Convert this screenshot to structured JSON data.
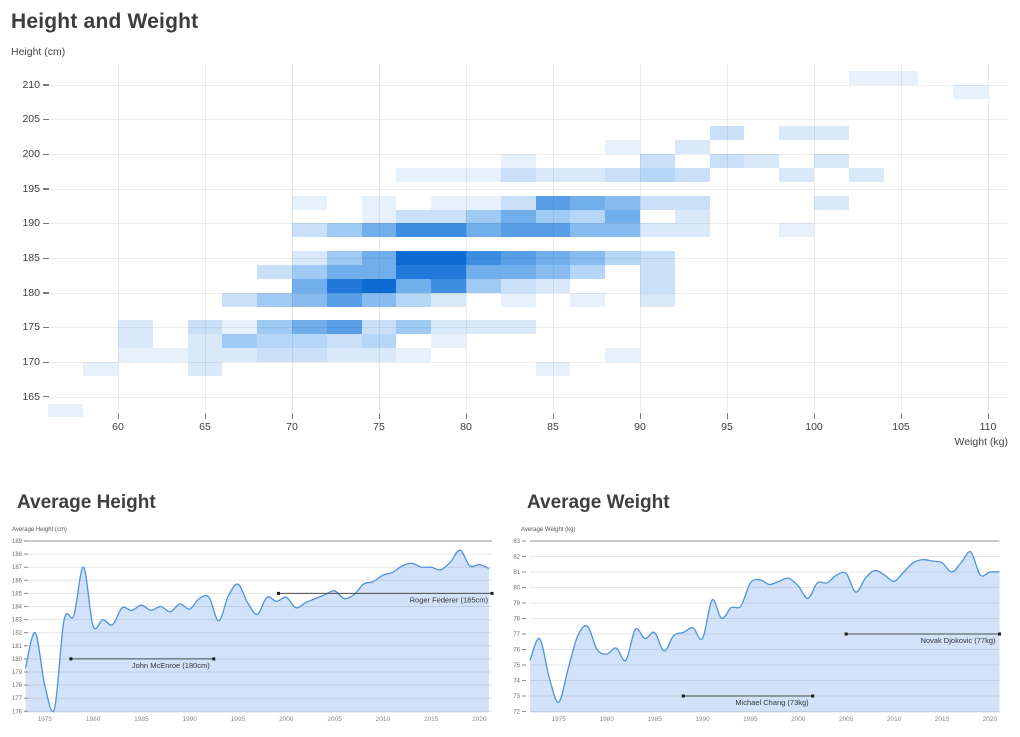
{
  "header": {
    "title": "Height and Weight"
  },
  "colors": {
    "accent_line": "#4e94dc",
    "area_fill": "#d2e2f8",
    "grid": "#ececec",
    "top_rule": "#a8a8a8",
    "annotation_line": "#4d4d4d",
    "annotation_dot": "#1a1a1a",
    "title_text": "#3c3c3c",
    "tick_text": "#3d3d3d",
    "small_tick_text": "#757575"
  },
  "chart_data": [
    {
      "type": "heatmap",
      "title": "Height and Weight",
      "xlabel": "Weight (kg)",
      "ylabel": "Height (cm)",
      "x_ticks": [
        60,
        65,
        70,
        75,
        80,
        85,
        90,
        95,
        100,
        105,
        110
      ],
      "y_ticks": [
        165,
        170,
        175,
        180,
        185,
        190,
        195,
        200,
        205,
        210
      ],
      "x_range": [
        56,
        110
      ],
      "y_range": [
        162,
        212
      ],
      "bin_size_kg": 2,
      "bin_size_cm": 2,
      "grid": "both",
      "intensity_scale": {
        "1": "#e7f1fc",
        "1.5": "#d9e9fa",
        "2": "#c9e0f8",
        "2.5": "#b5d6f6",
        "3": "#9fcaf3",
        "3.5": "#88bcf0",
        "4": "#70aeec",
        "4.5": "#579ee7",
        "5": "#3d8de2",
        "5.5": "#2379da",
        "6": "#0d6cd2"
      },
      "cells": [
        [
          56,
          162,
          1
        ],
        [
          58,
          168,
          1
        ],
        [
          64,
          168,
          1.5
        ],
        [
          84,
          168,
          1
        ],
        [
          60,
          170,
          1
        ],
        [
          62,
          170,
          1
        ],
        [
          64,
          170,
          1.5
        ],
        [
          66,
          170,
          1.5
        ],
        [
          68,
          170,
          2
        ],
        [
          70,
          170,
          2
        ],
        [
          72,
          170,
          1.5
        ],
        [
          74,
          170,
          1.5
        ],
        [
          76,
          170,
          1
        ],
        [
          88,
          170,
          1
        ],
        [
          60,
          172,
          1.5
        ],
        [
          64,
          172,
          1.5
        ],
        [
          66,
          172,
          3
        ],
        [
          68,
          172,
          2.5
        ],
        [
          70,
          172,
          2.5
        ],
        [
          72,
          172,
          2
        ],
        [
          74,
          172,
          2.5
        ],
        [
          78,
          172,
          1
        ],
        [
          60,
          174,
          1.5
        ],
        [
          64,
          174,
          2
        ],
        [
          66,
          174,
          1
        ],
        [
          68,
          174,
          3
        ],
        [
          70,
          174,
          4
        ],
        [
          72,
          174,
          4.5
        ],
        [
          74,
          174,
          2
        ],
        [
          76,
          174,
          3
        ],
        [
          78,
          174,
          1.5
        ],
        [
          80,
          174,
          1.5
        ],
        [
          82,
          174,
          1.5
        ],
        [
          66,
          178,
          2
        ],
        [
          68,
          178,
          3
        ],
        [
          70,
          178,
          3.5
        ],
        [
          72,
          178,
          4.5
        ],
        [
          74,
          178,
          3.5
        ],
        [
          76,
          178,
          2.5
        ],
        [
          78,
          178,
          1.5
        ],
        [
          82,
          178,
          1
        ],
        [
          86,
          178,
          1
        ],
        [
          90,
          178,
          1.5
        ],
        [
          70,
          180,
          4
        ],
        [
          72,
          180,
          5.5
        ],
        [
          74,
          180,
          6
        ],
        [
          76,
          180,
          4
        ],
        [
          78,
          180,
          5
        ],
        [
          80,
          180,
          3
        ],
        [
          82,
          180,
          2
        ],
        [
          84,
          180,
          1.5
        ],
        [
          90,
          180,
          2
        ],
        [
          68,
          182,
          2
        ],
        [
          70,
          182,
          3
        ],
        [
          72,
          182,
          4
        ],
        [
          74,
          182,
          4
        ],
        [
          76,
          182,
          5.5
        ],
        [
          78,
          182,
          5.5
        ],
        [
          80,
          182,
          4
        ],
        [
          82,
          182,
          4
        ],
        [
          84,
          182,
          3.5
        ],
        [
          86,
          182,
          2.5
        ],
        [
          90,
          182,
          2
        ],
        [
          70,
          184,
          1.5
        ],
        [
          72,
          184,
          3
        ],
        [
          74,
          184,
          4
        ],
        [
          76,
          184,
          6
        ],
        [
          78,
          184,
          6
        ],
        [
          80,
          184,
          5
        ],
        [
          82,
          184,
          4.5
        ],
        [
          84,
          184,
          4
        ],
        [
          86,
          184,
          3.5
        ],
        [
          88,
          184,
          2.5
        ],
        [
          90,
          184,
          2
        ],
        [
          70,
          188,
          2
        ],
        [
          72,
          188,
          3
        ],
        [
          74,
          188,
          4
        ],
        [
          76,
          188,
          5
        ],
        [
          78,
          188,
          5
        ],
        [
          80,
          188,
          4
        ],
        [
          82,
          188,
          4.5
        ],
        [
          84,
          188,
          4.5
        ],
        [
          86,
          188,
          3.5
        ],
        [
          88,
          188,
          3.5
        ],
        [
          90,
          188,
          1.5
        ],
        [
          92,
          188,
          1.5
        ],
        [
          98,
          188,
          1
        ],
        [
          74,
          190,
          1
        ],
        [
          76,
          190,
          2
        ],
        [
          78,
          190,
          2
        ],
        [
          80,
          190,
          3
        ],
        [
          82,
          190,
          4
        ],
        [
          84,
          190,
          3
        ],
        [
          86,
          190,
          2.5
        ],
        [
          88,
          190,
          4
        ],
        [
          92,
          190,
          1.5
        ],
        [
          70,
          192,
          1
        ],
        [
          74,
          192,
          1
        ],
        [
          78,
          192,
          1
        ],
        [
          80,
          192,
          1
        ],
        [
          82,
          192,
          2
        ],
        [
          84,
          192,
          4.5
        ],
        [
          86,
          192,
          4
        ],
        [
          88,
          192,
          3.5
        ],
        [
          90,
          192,
          2
        ],
        [
          92,
          192,
          2
        ],
        [
          100,
          192,
          1.5
        ],
        [
          76,
          196,
          1
        ],
        [
          78,
          196,
          1
        ],
        [
          80,
          196,
          1
        ],
        [
          82,
          196,
          2
        ],
        [
          84,
          196,
          1.5
        ],
        [
          86,
          196,
          1.5
        ],
        [
          88,
          196,
          2
        ],
        [
          90,
          196,
          2.5
        ],
        [
          92,
          196,
          2
        ],
        [
          98,
          196,
          1.5
        ],
        [
          102,
          196,
          1.5
        ],
        [
          82,
          198,
          1
        ],
        [
          90,
          198,
          2
        ],
        [
          94,
          198,
          2
        ],
        [
          96,
          198,
          1.5
        ],
        [
          100,
          198,
          1.5
        ],
        [
          88,
          200,
          1
        ],
        [
          92,
          200,
          1.5
        ],
        [
          94,
          202,
          2
        ],
        [
          98,
          202,
          1.5
        ],
        [
          100,
          202,
          1.5
        ],
        [
          108,
          208,
          1
        ],
        [
          102,
          210,
          1
        ],
        [
          104,
          210,
          1
        ]
      ]
    },
    {
      "type": "area",
      "title": "Average Height",
      "ylabel": "Average Height (cm)",
      "ylim": [
        176,
        189
      ],
      "y_ticks": [
        176,
        177,
        178,
        179,
        180,
        181,
        182,
        183,
        184,
        185,
        186,
        187,
        188,
        189
      ],
      "x_ticks": [
        1975,
        1980,
        1985,
        1990,
        1995,
        2000,
        2005,
        2010,
        2015,
        2020
      ],
      "grid": "horizontal",
      "years": [
        1973,
        1974,
        1975,
        1976,
        1977,
        1978,
        1979,
        1980,
        1981,
        1982,
        1983,
        1984,
        1985,
        1986,
        1987,
        1988,
        1989,
        1990,
        1991,
        1992,
        1993,
        1994,
        1995,
        1996,
        1997,
        1998,
        1999,
        2000,
        2001,
        2002,
        2003,
        2004,
        2005,
        2006,
        2007,
        2008,
        2009,
        2010,
        2011,
        2012,
        2013,
        2014,
        2015,
        2016,
        2017,
        2018,
        2019,
        2020,
        2021
      ],
      "values": [
        179.3,
        182,
        178,
        176.2,
        183,
        183.3,
        187,
        182.5,
        183,
        182.6,
        183.9,
        183.7,
        184.1,
        183.7,
        184,
        183.6,
        184.2,
        183.8,
        184.6,
        184.7,
        182.9,
        184.8,
        185.7,
        184.3,
        183.4,
        184.7,
        184.4,
        184.7,
        183.9,
        184.3,
        184.6,
        184.9,
        185.2,
        184.6,
        184.9,
        185.7,
        185.9,
        186.4,
        186.6,
        187.1,
        187.3,
        187,
        187,
        186.8,
        187.4,
        188.3,
        187.1,
        187.2,
        186.9
      ],
      "annotations": [
        {
          "label": "John McEnroe (180cm)",
          "value": 180,
          "start": 1977.7,
          "end": 1992.5
        },
        {
          "label": "Roger Federer (185cm)",
          "value": 185,
          "start": 1999.2,
          "end": 2021.3
        }
      ]
    },
    {
      "type": "area",
      "title": "Average Weight",
      "ylabel": "Average Weight (kg)",
      "ylim": [
        72,
        83
      ],
      "y_ticks": [
        72,
        73,
        74,
        75,
        76,
        77,
        78,
        79,
        80,
        81,
        82,
        83
      ],
      "x_ticks": [
        1975,
        1980,
        1985,
        1990,
        1995,
        2000,
        2005,
        2010,
        2015,
        2020
      ],
      "grid": "horizontal",
      "years": [
        1972,
        1973,
        1974,
        1975,
        1976,
        1977,
        1978,
        1979,
        1980,
        1981,
        1982,
        1983,
        1984,
        1985,
        1986,
        1987,
        1988,
        1989,
        1990,
        1991,
        1992,
        1993,
        1994,
        1995,
        1996,
        1997,
        1998,
        1999,
        2000,
        2001,
        2002,
        2003,
        2004,
        2005,
        2006,
        2007,
        2008,
        2009,
        2010,
        2011,
        2012,
        2013,
        2014,
        2015,
        2016,
        2017,
        2018,
        2019,
        2020,
        2021
      ],
      "values": [
        75.3,
        76.7,
        74.2,
        72.6,
        74.8,
        76.9,
        77.5,
        76,
        75.7,
        76.1,
        75.3,
        77.3,
        76.7,
        77.1,
        75.9,
        76.9,
        77.1,
        77.4,
        76.7,
        79.2,
        78,
        78.7,
        78.8,
        80.3,
        80.5,
        80.2,
        80.4,
        80.6,
        80.1,
        79.3,
        80.3,
        80.3,
        80.8,
        80.9,
        79.7,
        80.6,
        81.1,
        80.8,
        80.4,
        81,
        81.6,
        81.8,
        81.7,
        81.6,
        81,
        81.6,
        82.3,
        80.8,
        81,
        81
      ],
      "annotations": [
        {
          "label": "Michael Chang (73kg)",
          "value": 73,
          "start": 1988,
          "end": 2001.5
        },
        {
          "label": "Novak Djokovic (77kg)",
          "value": 77,
          "start": 2005,
          "end": 2021
        }
      ]
    }
  ]
}
